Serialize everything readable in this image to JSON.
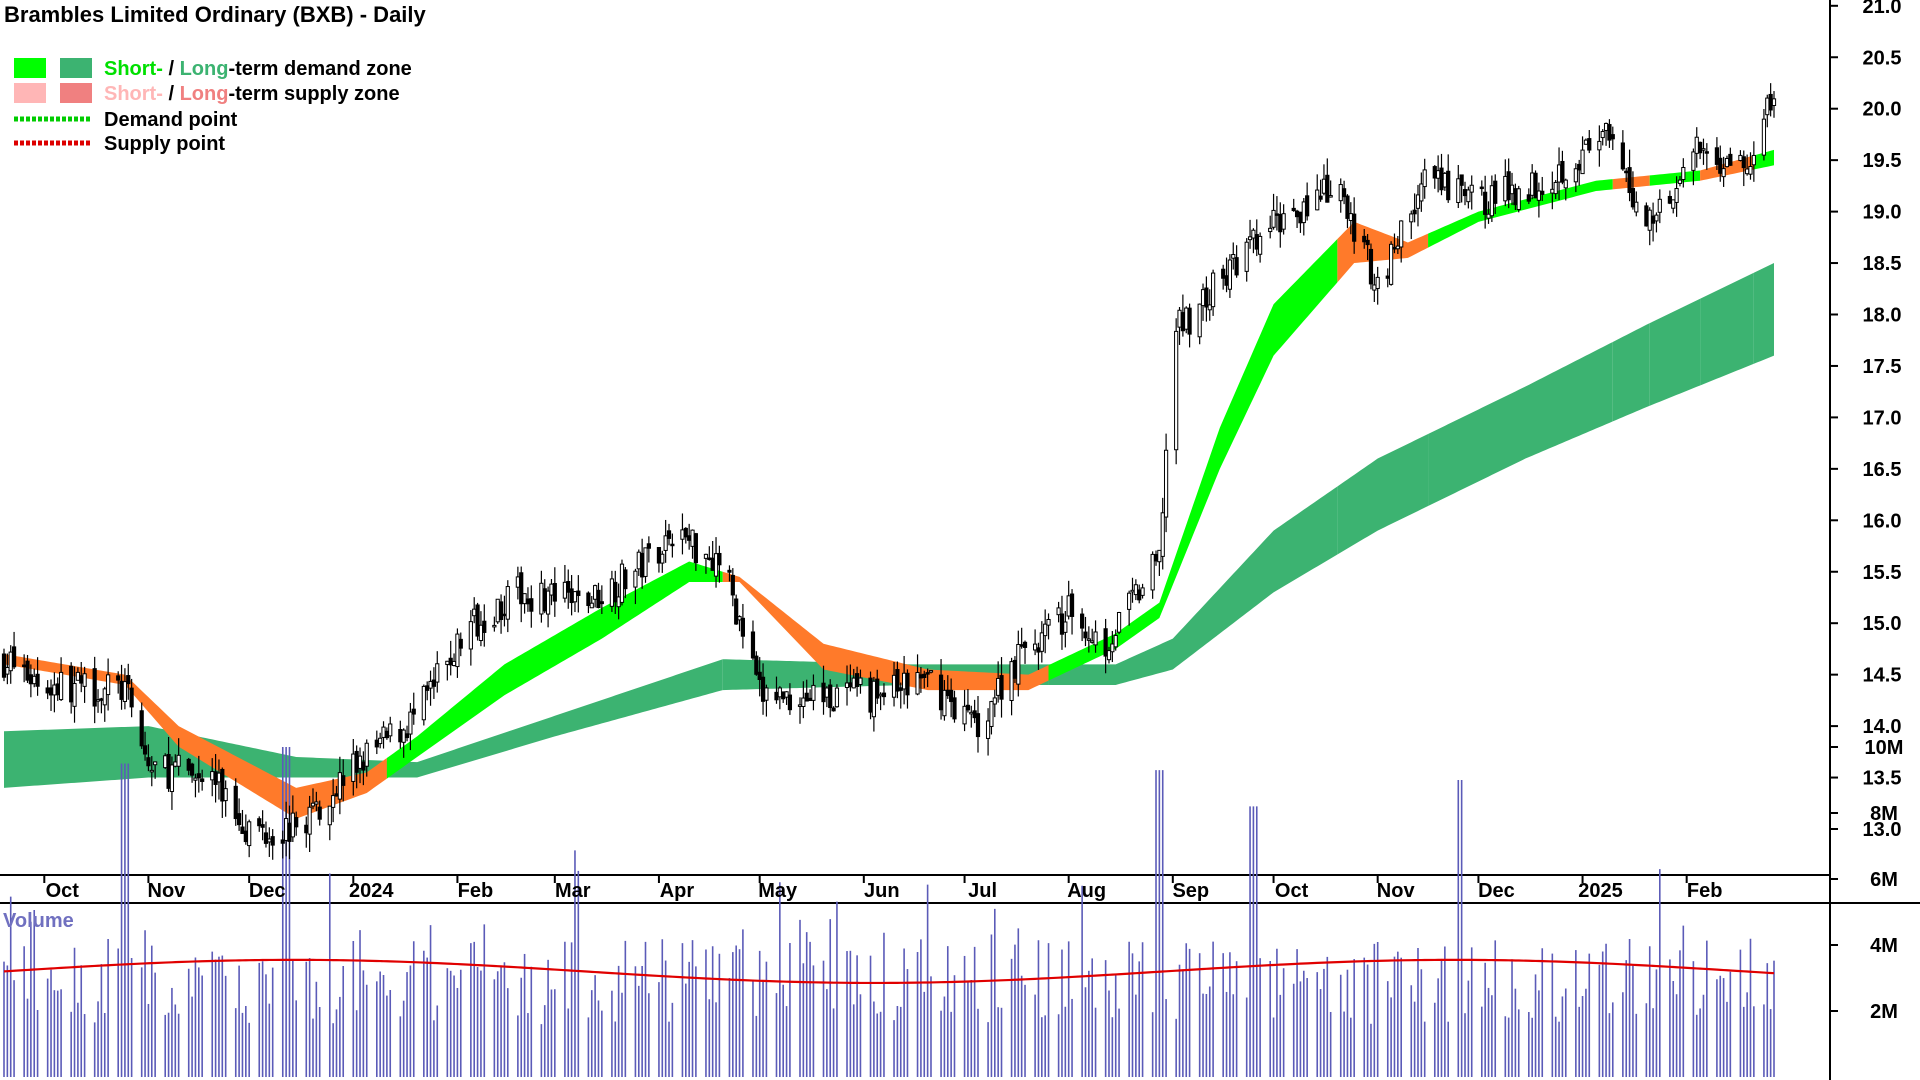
{
  "chart_data": {
    "type": "candlestick",
    "title": "Brambles Limited Ordinary (BXB) - Daily",
    "legend": {
      "items": [
        {
          "short": "Short-",
          "sep": " / ",
          "long": "Long",
          "rest": "-term demand zone",
          "color_short": "#00ff00",
          "color_long": "#3cb371"
        },
        {
          "short": "Short-",
          "sep": " / ",
          "long": "Long",
          "rest": "-term supply zone",
          "color_short": "#ffb6b6",
          "color_long": "#f08080"
        },
        {
          "label": "Demand point",
          "color": "#00cc00"
        },
        {
          "label": "Supply point",
          "color": "#dd0000"
        }
      ]
    },
    "price_axis": {
      "min": 12.5,
      "max": 21.0,
      "tick_labels": [
        "13.0",
        "13.5",
        "14.0",
        "14.5",
        "15.0",
        "15.5",
        "16.0",
        "16.5",
        "17.0",
        "17.5",
        "18.0",
        "18.5",
        "19.0",
        "19.5",
        "20.0",
        "20.5",
        "21.0"
      ]
    },
    "x_labels": [
      "Oct",
      "Nov",
      "Dec",
      "2024",
      "Feb",
      "Mar",
      "Apr",
      "May",
      "Jun",
      "Jul",
      "Aug",
      "Sep",
      "Oct",
      "Nov",
      "Dec",
      "2025",
      "Feb"
    ],
    "x_label_dates": [
      "2023-10",
      "2023-11",
      "2023-12",
      "2024-01",
      "2024-02",
      "2024-03",
      "2024-04",
      "2024-05",
      "2024-06",
      "2024-07",
      "2024-08",
      "2024-09",
      "2024-10",
      "2024-11",
      "2024-12",
      "2025-01",
      "2025-02"
    ],
    "price_path": [
      {
        "date": "2023-09-19",
        "close": 14.65
      },
      {
        "date": "2023-10-01",
        "close": 14.4
      },
      {
        "date": "2023-10-25",
        "close": 14.35
      },
      {
        "date": "2023-11-01",
        "close": 13.6
      },
      {
        "date": "2023-11-10",
        "close": 13.55
      },
      {
        "date": "2023-11-20",
        "close": 13.5
      },
      {
        "date": "2023-12-01",
        "close": 13.0
      },
      {
        "date": "2023-12-15",
        "close": 13.0
      },
      {
        "date": "2024-01-01",
        "close": 13.6
      },
      {
        "date": "2024-01-20",
        "close": 14.1
      },
      {
        "date": "2024-02-05",
        "close": 15.0
      },
      {
        "date": "2024-02-20",
        "close": 15.3
      },
      {
        "date": "2024-03-10",
        "close": 15.2
      },
      {
        "date": "2024-03-25",
        "close": 15.5
      },
      {
        "date": "2024-04-05",
        "close": 15.9
      },
      {
        "date": "2024-04-20",
        "close": 15.6
      },
      {
        "date": "2024-05-01",
        "close": 14.3
      },
      {
        "date": "2024-05-20",
        "close": 14.3
      },
      {
        "date": "2024-06-05",
        "close": 14.3
      },
      {
        "date": "2024-06-20",
        "close": 14.45
      },
      {
        "date": "2024-07-05",
        "close": 14.0
      },
      {
        "date": "2024-07-15",
        "close": 14.6
      },
      {
        "date": "2024-08-01",
        "close": 15.1
      },
      {
        "date": "2024-08-12",
        "close": 14.8
      },
      {
        "date": "2024-08-28",
        "close": 15.6
      },
      {
        "date": "2024-09-01",
        "close": 17.8
      },
      {
        "date": "2024-09-20",
        "close": 18.5
      },
      {
        "date": "2024-10-05",
        "close": 19.0
      },
      {
        "date": "2024-10-20",
        "close": 19.2
      },
      {
        "date": "2024-11-01",
        "close": 18.3
      },
      {
        "date": "2024-11-15",
        "close": 19.3
      },
      {
        "date": "2024-12-01",
        "close": 19.1
      },
      {
        "date": "2024-12-20",
        "close": 19.3
      },
      {
        "date": "2025-01-08",
        "close": 19.7
      },
      {
        "date": "2025-01-20",
        "close": 18.9
      },
      {
        "date": "2025-02-05",
        "close": 19.6
      },
      {
        "date": "2025-02-20",
        "close": 19.4
      },
      {
        "date": "2025-02-27",
        "close": 20.2
      }
    ],
    "zones": {
      "short_term": [
        {
          "date": "2023-09-19",
          "upper": 14.7,
          "lower": 14.6
        },
        {
          "date": "2023-10-25",
          "upper": 14.5,
          "lower": 14.4
        },
        {
          "date": "2023-11-10",
          "upper": 14.0,
          "lower": 13.8
        },
        {
          "date": "2023-12-15",
          "upper": 13.4,
          "lower": 13.1
        },
        {
          "date": "2024-01-05",
          "upper": 13.55,
          "lower": 13.35
        },
        {
          "date": "2024-01-20",
          "upper": 13.9,
          "lower": 13.7
        },
        {
          "date": "2024-02-15",
          "upper": 14.6,
          "lower": 14.3
        },
        {
          "date": "2024-03-15",
          "upper": 15.15,
          "lower": 14.85
        },
        {
          "date": "2024-04-10",
          "upper": 15.6,
          "lower": 15.4
        },
        {
          "date": "2024-04-25",
          "upper": 15.45,
          "lower": 15.4
        },
        {
          "date": "2024-05-20",
          "upper": 14.8,
          "lower": 14.55
        },
        {
          "date": "2024-06-20",
          "upper": 14.55,
          "lower": 14.35
        },
        {
          "date": "2024-07-20",
          "upper": 14.5,
          "lower": 14.35
        },
        {
          "date": "2024-08-15",
          "upper": 14.9,
          "lower": 14.75
        },
        {
          "date": "2024-08-28",
          "upper": 15.2,
          "lower": 15.05
        },
        {
          "date": "2024-09-15",
          "upper": 16.9,
          "lower": 16.5
        },
        {
          "date": "2024-10-01",
          "upper": 18.1,
          "lower": 17.6
        },
        {
          "date": "2024-10-25",
          "upper": 18.9,
          "lower": 18.5
        },
        {
          "date": "2024-11-10",
          "upper": 18.7,
          "lower": 18.55
        },
        {
          "date": "2024-12-01",
          "upper": 19.0,
          "lower": 18.9
        },
        {
          "date": "2025-01-05",
          "upper": 19.3,
          "lower": 19.2
        },
        {
          "date": "2025-02-05",
          "upper": 19.4,
          "lower": 19.3
        },
        {
          "date": "2025-02-27",
          "upper": 19.6,
          "lower": 19.45
        }
      ],
      "long_term": [
        {
          "date": "2023-09-19",
          "upper": 13.95,
          "lower": 13.4
        },
        {
          "date": "2023-11-01",
          "upper": 14.0,
          "lower": 13.5
        },
        {
          "date": "2023-12-15",
          "upper": 13.7,
          "lower": 13.5
        },
        {
          "date": "2024-01-20",
          "upper": 13.65,
          "lower": 13.5
        },
        {
          "date": "2024-03-01",
          "upper": 14.1,
          "lower": 13.9
        },
        {
          "date": "2024-04-20",
          "upper": 14.65,
          "lower": 14.35
        },
        {
          "date": "2024-06-15",
          "upper": 14.6,
          "lower": 14.4
        },
        {
          "date": "2024-08-15",
          "upper": 14.6,
          "lower": 14.4
        },
        {
          "date": "2024-09-01",
          "upper": 14.85,
          "lower": 14.55
        },
        {
          "date": "2024-10-01",
          "upper": 15.9,
          "lower": 15.3
        },
        {
          "date": "2024-11-01",
          "upper": 16.6,
          "lower": 15.9
        },
        {
          "date": "2024-12-15",
          "upper": 17.3,
          "lower": 16.6
        },
        {
          "date": "2025-01-20",
          "upper": 17.9,
          "lower": 17.1
        },
        {
          "date": "2025-02-27",
          "upper": 18.5,
          "lower": 17.6
        }
      ],
      "supply_periods": [
        [
          "2023-09-19",
          "2024-01-10"
        ],
        [
          "2024-04-20",
          "2024-07-25"
        ],
        [
          "2024-10-20",
          "2024-11-15"
        ],
        [
          "2025-01-10",
          "2025-01-20"
        ],
        [
          "2025-02-05",
          "2025-02-20"
        ]
      ]
    },
    "volume": {
      "label": "Volume",
      "axis_labels": [
        "10M",
        "8M",
        "6M",
        "4M",
        "2M"
      ],
      "axis_values": [
        10,
        8,
        6,
        4,
        2
      ],
      "average_level": 3.2,
      "spikes": [
        {
          "date": "2023-10-25",
          "value": 9.5
        },
        {
          "date": "2023-12-12",
          "value": 10.0
        },
        {
          "date": "2024-08-28",
          "value": 9.3
        },
        {
          "date": "2024-11-25",
          "value": 9.0
        },
        {
          "date": "2024-09-25",
          "value": 8.2
        },
        {
          "date": "2025-01-25",
          "value": 6.3
        }
      ]
    }
  }
}
